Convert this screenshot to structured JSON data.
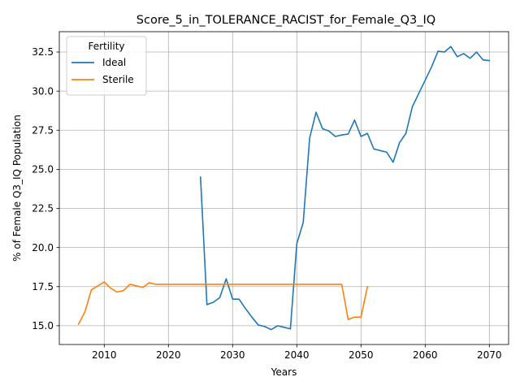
{
  "chart_data": {
    "type": "line",
    "title": "Score_5_in_TOLERANCE_RACIST_for_Female_Q3_IQ",
    "xlabel": "Years",
    "ylabel": "% of Female Q3_IQ Population",
    "xlim": [
      2003,
      2073
    ],
    "ylim": [
      13.8,
      33.8
    ],
    "xticks": [
      2010,
      2020,
      2030,
      2040,
      2050,
      2060,
      2070
    ],
    "yticks": [
      15.0,
      17.5,
      20.0,
      22.5,
      25.0,
      27.5,
      30.0,
      32.5
    ],
    "xtick_labels": [
      "2010",
      "2020",
      "2030",
      "2040",
      "2050",
      "2060",
      "2070"
    ],
    "ytick_labels": [
      "15.0",
      "17.5",
      "20.0",
      "22.5",
      "25.0",
      "27.5",
      "30.0",
      "32.5"
    ],
    "grid": true,
    "legend": {
      "title": "Fertility",
      "placement": "top-left"
    },
    "series": [
      {
        "name": "Ideal",
        "color": "#1f77b4",
        "x": [
          2025,
          2026,
          2027,
          2028,
          2029,
          2030,
          2031,
          2032,
          2033,
          2034,
          2035,
          2036,
          2037,
          2038,
          2039,
          2040,
          2041,
          2042,
          2043,
          2044,
          2045,
          2046,
          2047,
          2048,
          2049,
          2050,
          2051,
          2052,
          2053,
          2054,
          2055,
          2056,
          2057,
          2058,
          2059,
          2060,
          2061,
          2062,
          2063,
          2064,
          2065,
          2066,
          2067,
          2068,
          2069,
          2070
        ],
        "y": [
          24.5,
          16.35,
          16.5,
          16.8,
          18.0,
          16.7,
          16.7,
          16.1,
          15.55,
          15.05,
          14.95,
          14.75,
          15.0,
          14.9,
          14.8,
          20.25,
          21.6,
          27.0,
          28.65,
          27.6,
          27.45,
          27.1,
          27.2,
          27.25,
          28.15,
          27.1,
          27.3,
          26.3,
          26.2,
          26.1,
          25.45,
          26.7,
          27.3,
          29.0,
          29.85,
          30.7,
          31.55,
          32.55,
          32.5,
          32.85,
          32.2,
          32.4,
          32.1,
          32.5,
          32.0,
          31.95
        ]
      },
      {
        "name": "Sterile",
        "color": "#ff7f0e",
        "x": [
          2006,
          2007,
          2008,
          2009,
          2010,
          2011,
          2012,
          2013,
          2014,
          2015,
          2016,
          2017,
          2018,
          2019,
          2020,
          2021,
          2022,
          2023,
          2024,
          2025,
          2026,
          2027,
          2028,
          2029,
          2030,
          2031,
          2032,
          2033,
          2034,
          2035,
          2036,
          2037,
          2038,
          2039,
          2040,
          2041,
          2042,
          2043,
          2044,
          2045,
          2046,
          2047,
          2048,
          2049,
          2050,
          2051
        ],
        "y": [
          15.1,
          15.9,
          17.3,
          17.55,
          17.8,
          17.4,
          17.15,
          17.25,
          17.65,
          17.55,
          17.45,
          17.75,
          17.65,
          17.65,
          17.65,
          17.65,
          17.65,
          17.65,
          17.65,
          17.65,
          17.65,
          17.65,
          17.65,
          17.65,
          17.65,
          17.65,
          17.65,
          17.65,
          17.65,
          17.65,
          17.65,
          17.65,
          17.65,
          17.65,
          17.65,
          17.65,
          17.65,
          17.65,
          17.65,
          17.65,
          17.65,
          17.65,
          15.4,
          15.55,
          15.55,
          17.5
        ]
      }
    ]
  }
}
